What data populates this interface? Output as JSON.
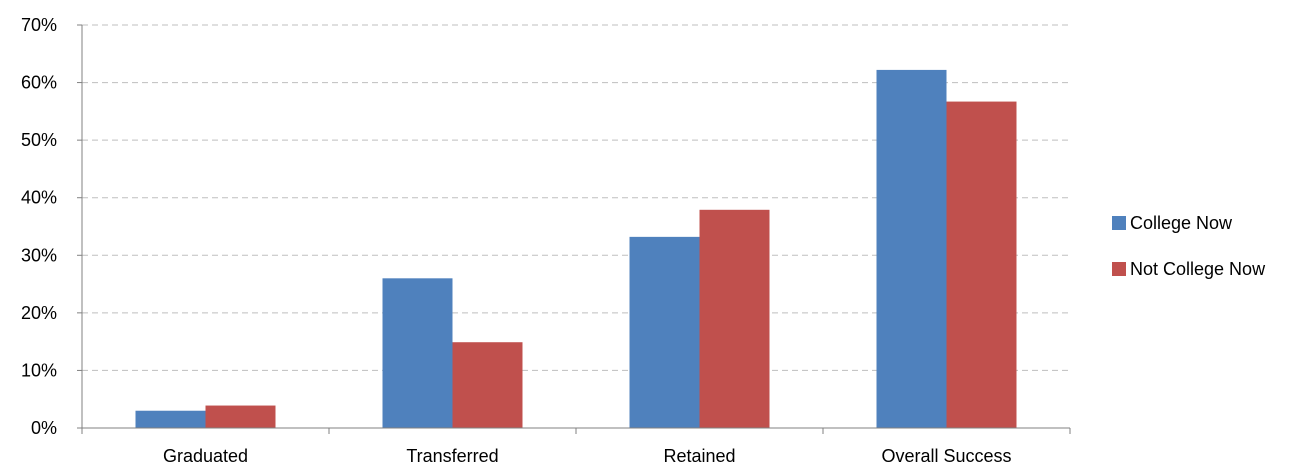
{
  "chart_data": {
    "type": "bar",
    "categories": [
      "Graduated",
      "Transferred",
      "Retained",
      "Overall Success"
    ],
    "series": [
      {
        "name": "College Now",
        "color": "#4F81BD",
        "values": [
          3,
          26,
          33.2,
          62.2
        ]
      },
      {
        "name": "Not College Now",
        "color": "#C0504D",
        "values": [
          3.9,
          14.9,
          37.9,
          56.7
        ]
      }
    ],
    "ylim": [
      0,
      70
    ],
    "yticks": [
      "0%",
      "10%",
      "20%",
      "30%",
      "40%",
      "50%",
      "60%",
      "70%"
    ],
    "grid": true,
    "legend_position": "right"
  }
}
